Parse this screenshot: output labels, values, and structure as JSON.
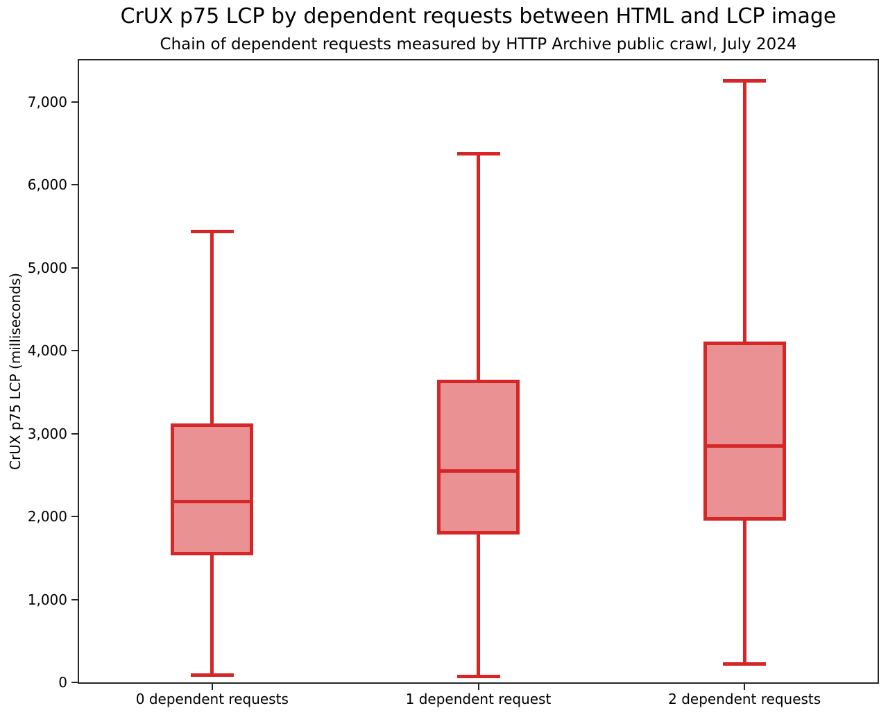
{
  "title": "CrUX p75 LCP by dependent requests between HTML and LCP image",
  "subtitle": "Chain of dependent requests measured by HTTP Archive public crawl, July 2024",
  "chart_data": {
    "type": "boxplot",
    "title": "CrUX p75 LCP by dependent requests between HTML and LCP image",
    "subtitle": "Chain of dependent requests measured by HTTP Archive public crawl, July 2024",
    "xlabel": "",
    "ylabel": "CrUX p75 LCP (milliseconds)",
    "ylim": [
      0,
      7500
    ],
    "yticks": [
      0,
      1000,
      2000,
      3000,
      4000,
      5000,
      6000,
      7000
    ],
    "ytick_labels": [
      "0",
      "1,000",
      "2,000",
      "3,000",
      "4,000",
      "5,000",
      "6,000",
      "7,000"
    ],
    "categories": [
      "0 dependent requests",
      "1 dependent request",
      "2 dependent requests"
    ],
    "grid": false,
    "legend": null,
    "boxes": [
      {
        "label": "0 dependent requests",
        "whisker_low": 90,
        "q1": 1550,
        "median": 2180,
        "q3": 3100,
        "whisker_high": 5440
      },
      {
        "label": "1 dependent request",
        "whisker_low": 75,
        "q1": 1800,
        "median": 2550,
        "q3": 3630,
        "whisker_high": 6370
      },
      {
        "label": "2 dependent requests",
        "whisker_low": 220,
        "q1": 1970,
        "median": 2850,
        "q3": 4090,
        "whisker_high": 7250
      }
    ],
    "colors": {
      "box_line": "#d62728",
      "box_fill": "#ea9194",
      "axis": "#262626",
      "text": "#000000",
      "background": "#ffffff"
    }
  }
}
